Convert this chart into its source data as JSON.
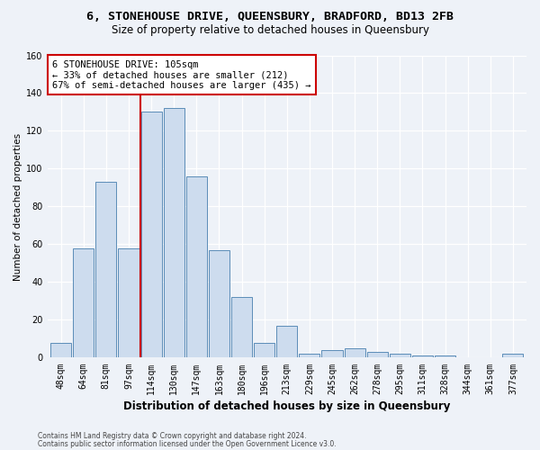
{
  "title1": "6, STONEHOUSE DRIVE, QUEENSBURY, BRADFORD, BD13 2FB",
  "title2": "Size of property relative to detached houses in Queensbury",
  "xlabel": "Distribution of detached houses by size in Queensbury",
  "ylabel": "Number of detached properties",
  "categories": [
    "48sqm",
    "64sqm",
    "81sqm",
    "97sqm",
    "114sqm",
    "130sqm",
    "147sqm",
    "163sqm",
    "180sqm",
    "196sqm",
    "213sqm",
    "229sqm",
    "245sqm",
    "262sqm",
    "278sqm",
    "295sqm",
    "311sqm",
    "328sqm",
    "344sqm",
    "361sqm",
    "377sqm"
  ],
  "values": [
    8,
    58,
    93,
    58,
    130,
    132,
    96,
    57,
    32,
    8,
    17,
    2,
    4,
    5,
    3,
    2,
    1,
    1,
    0,
    0,
    2
  ],
  "bar_color": "#cddcee",
  "bar_edge_color": "#5b8db8",
  "annotation_line1": "6 STONEHOUSE DRIVE: 105sqm",
  "annotation_line2": "← 33% of detached houses are smaller (212)",
  "annotation_line3": "67% of semi-detached houses are larger (435) →",
  "annotation_box_facecolor": "#ffffff",
  "annotation_box_edgecolor": "#cc0000",
  "footer1": "Contains HM Land Registry data © Crown copyright and database right 2024.",
  "footer2": "Contains public sector information licensed under the Open Government Licence v3.0.",
  "ylim": [
    0,
    160
  ],
  "yticks": [
    0,
    20,
    40,
    60,
    80,
    100,
    120,
    140,
    160
  ],
  "background_color": "#eef2f8",
  "plot_bg_color": "#eef2f8",
  "grid_color": "#ffffff",
  "red_line_x": 3.5,
  "title1_fontsize": 9.5,
  "title2_fontsize": 8.5,
  "xlabel_fontsize": 8.5,
  "ylabel_fontsize": 7.5,
  "tick_fontsize": 7,
  "annot_fontsize": 7.5,
  "footer_fontsize": 5.5
}
